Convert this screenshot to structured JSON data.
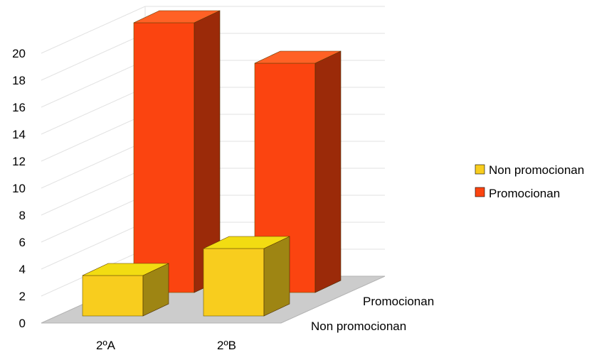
{
  "chart_data": {
    "type": "bar",
    "subtype": "3d-bar-with-depth-series",
    "categories": [
      "2ºA",
      "2ºB"
    ],
    "series": [
      {
        "name": "Non promocionan",
        "values": [
          3,
          5
        ],
        "color": "#f8cd1e",
        "side_color": "#9e8513",
        "top_color": "#f2dc12"
      },
      {
        "name": "Promocionan",
        "values": [
          20,
          17
        ],
        "color": "#fb4410",
        "side_color": "#9b2a09",
        "top_color": "#ff6125"
      }
    ],
    "y_ticks": [
      "0",
      "2",
      "4",
      "6",
      "8",
      "10",
      "12",
      "14",
      "16",
      "18",
      "20"
    ],
    "ylim": [
      0,
      20
    ],
    "grid": true,
    "legend": {
      "position": "right",
      "entries": [
        "Non promocionan",
        "Promocionan"
      ]
    },
    "depth_labels": [
      "Non promocionan",
      "Promocionan"
    ]
  }
}
